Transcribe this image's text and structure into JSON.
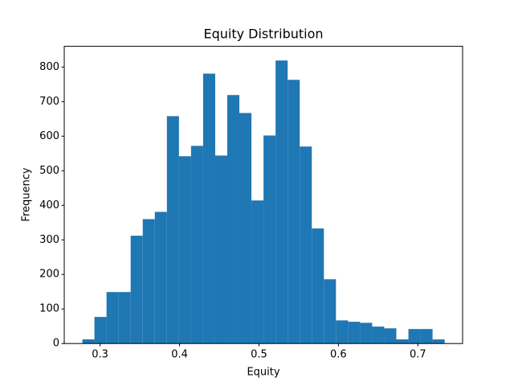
{
  "chart_data": {
    "type": "histogram",
    "title": "Equity Distribution",
    "x_label": "Equity",
    "y_label": "Frequency",
    "bins": [
      0.2777,
      0.2929,
      0.3081,
      0.3233,
      0.3385,
      0.3537,
      0.3689,
      0.3841,
      0.3993,
      0.4145,
      0.4297,
      0.4449,
      0.4601,
      0.4753,
      0.4905,
      0.5057,
      0.5209,
      0.5361,
      0.5513,
      0.5665,
      0.5817,
      0.5969,
      0.6121,
      0.6273,
      0.6425,
      0.6577,
      0.6729,
      0.6881,
      0.7033,
      0.7185,
      0.7337
    ],
    "values": [
      12,
      77,
      149,
      149,
      312,
      360,
      381,
      658,
      542,
      572,
      781,
      544,
      719,
      667,
      414,
      602,
      819,
      763,
      570,
      333,
      186,
      67,
      63,
      60,
      49,
      44,
      12,
      42,
      42,
      12
    ],
    "color": "#1f77b4",
    "xlim": [
      0.2549,
      0.7563
    ],
    "xticks": [
      0.3,
      0.4,
      0.5,
      0.6,
      0.7
    ],
    "ylim": [
      0,
      860
    ],
    "yticks": [
      0,
      100,
      200,
      300,
      400,
      500,
      600,
      700,
      800
    ]
  }
}
